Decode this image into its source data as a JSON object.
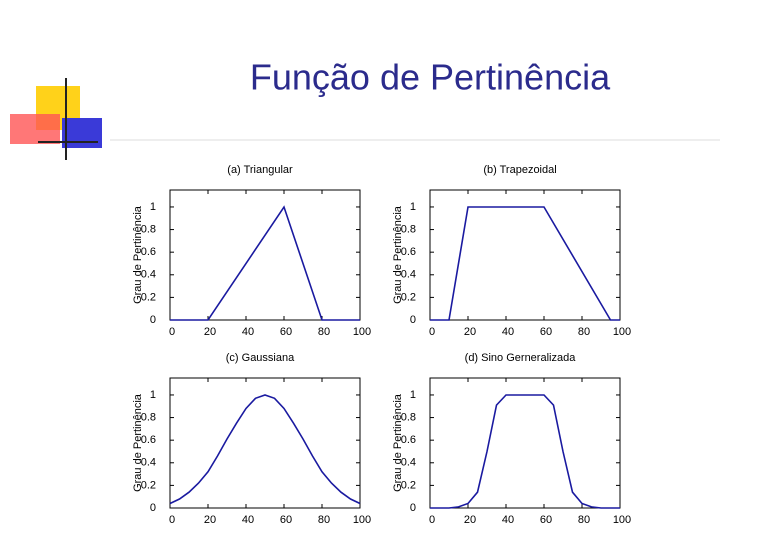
{
  "slide_title": "Função de Pertinência",
  "chart_data": [
    {
      "type": "line",
      "title": "(a) Triangular",
      "ylabel": "Grau de Pertinência",
      "color": "#1a1aa0",
      "x": [
        0,
        20,
        60,
        80,
        100
      ],
      "values": [
        0,
        0,
        1,
        0,
        0
      ],
      "xlim": [
        0,
        100
      ],
      "ylim": [
        0,
        1.15
      ],
      "xticks": [
        0,
        20,
        40,
        60,
        80,
        100
      ],
      "yticks": [
        0,
        0.2,
        0.4,
        0.6,
        0.8,
        1
      ]
    },
    {
      "type": "line",
      "title": "(b) Trapezoidal",
      "ylabel": "Grau de Pertinência",
      "color": "#1a1aa0",
      "x": [
        0,
        10,
        20,
        60,
        95,
        100
      ],
      "values": [
        0,
        0,
        1,
        1,
        0,
        0
      ],
      "xlim": [
        0,
        100
      ],
      "ylim": [
        0,
        1.15
      ],
      "xticks": [
        0,
        20,
        40,
        60,
        80,
        100
      ],
      "yticks": [
        0,
        0.2,
        0.4,
        0.6,
        0.8,
        1
      ]
    },
    {
      "type": "line",
      "title": "(c) Gaussiana",
      "ylabel": "Grau de Pertinência",
      "color": "#1a1aa0",
      "x": [
        0,
        5,
        10,
        15,
        20,
        25,
        30,
        35,
        40,
        45,
        50,
        55,
        60,
        65,
        70,
        75,
        80,
        85,
        90,
        95,
        100
      ],
      "values": [
        0.04,
        0.08,
        0.14,
        0.22,
        0.32,
        0.46,
        0.61,
        0.75,
        0.88,
        0.97,
        1,
        0.97,
        0.88,
        0.75,
        0.61,
        0.46,
        0.32,
        0.22,
        0.14,
        0.08,
        0.04
      ],
      "xlim": [
        0,
        100
      ],
      "ylim": [
        0,
        1.15
      ],
      "xticks": [
        0,
        20,
        40,
        60,
        80,
        100
      ],
      "yticks": [
        0,
        0.2,
        0.4,
        0.6,
        0.8,
        1
      ]
    },
    {
      "type": "line",
      "title": "(d) Sino Gerneralizada",
      "ylabel": "Grau de Pertinência",
      "color": "#1a1aa0",
      "x": [
        0,
        5,
        10,
        15,
        20,
        25,
        30,
        35,
        40,
        45,
        50,
        55,
        60,
        65,
        70,
        75,
        80,
        85,
        90,
        95,
        100
      ],
      "values": [
        0,
        0,
        0,
        0.01,
        0.04,
        0.14,
        0.5,
        0.91,
        1,
        1,
        1,
        1,
        1,
        0.91,
        0.5,
        0.14,
        0.04,
        0.01,
        0,
        0,
        0
      ],
      "xlim": [
        0,
        100
      ],
      "ylim": [
        0,
        1.15
      ],
      "xticks": [
        0,
        20,
        40,
        60,
        80,
        100
      ],
      "yticks": [
        0,
        0.2,
        0.4,
        0.6,
        0.8,
        1
      ]
    }
  ]
}
